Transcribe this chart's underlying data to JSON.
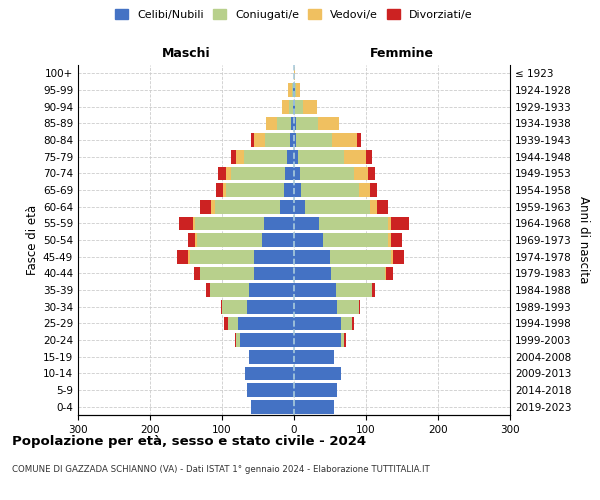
{
  "age_groups": [
    "0-4",
    "5-9",
    "10-14",
    "15-19",
    "20-24",
    "25-29",
    "30-34",
    "35-39",
    "40-44",
    "45-49",
    "50-54",
    "55-59",
    "60-64",
    "65-69",
    "70-74",
    "75-79",
    "80-84",
    "85-89",
    "90-94",
    "95-99",
    "100+"
  ],
  "birth_years": [
    "2019-2023",
    "2014-2018",
    "2009-2013",
    "2004-2008",
    "1999-2003",
    "1994-1998",
    "1989-1993",
    "1984-1988",
    "1979-1983",
    "1974-1978",
    "1969-1973",
    "1964-1968",
    "1959-1963",
    "1954-1958",
    "1949-1953",
    "1944-1948",
    "1939-1943",
    "1934-1938",
    "1929-1933",
    "1924-1928",
    "≤ 1923"
  ],
  "colors": {
    "celibi": "#4472c4",
    "coniugati": "#b8d08c",
    "vedovi": "#f0c060",
    "divorziati": "#cc2222"
  },
  "maschi": {
    "celibi": [
      60,
      65,
      68,
      62,
      75,
      78,
      65,
      62,
      55,
      55,
      45,
      42,
      20,
      14,
      12,
      10,
      5,
      4,
      2,
      1,
      0
    ],
    "coniugati": [
      0,
      0,
      0,
      0,
      5,
      14,
      35,
      55,
      75,
      90,
      90,
      95,
      90,
      80,
      75,
      60,
      35,
      20,
      5,
      2,
      0
    ],
    "vedovi": [
      0,
      0,
      0,
      0,
      0,
      0,
      0,
      0,
      1,
      2,
      2,
      3,
      5,
      5,
      8,
      10,
      15,
      15,
      10,
      5,
      0
    ],
    "divorziati": [
      0,
      0,
      0,
      0,
      2,
      5,
      2,
      5,
      8,
      15,
      10,
      20,
      15,
      10,
      10,
      8,
      5,
      0,
      0,
      0,
      0
    ]
  },
  "femmine": {
    "celibi": [
      55,
      60,
      65,
      55,
      65,
      65,
      60,
      58,
      52,
      50,
      40,
      35,
      15,
      10,
      8,
      5,
      3,
      3,
      2,
      1,
      0
    ],
    "coniugati": [
      0,
      0,
      0,
      0,
      5,
      15,
      30,
      50,
      75,
      85,
      90,
      95,
      90,
      80,
      75,
      65,
      50,
      30,
      10,
      2,
      0
    ],
    "vedovi": [
      0,
      0,
      0,
      0,
      0,
      0,
      0,
      0,
      1,
      3,
      5,
      5,
      10,
      15,
      20,
      30,
      35,
      30,
      20,
      5,
      2
    ],
    "divorziati": [
      0,
      0,
      0,
      0,
      2,
      3,
      2,
      5,
      10,
      15,
      15,
      25,
      15,
      10,
      10,
      8,
      5,
      0,
      0,
      0,
      0
    ]
  },
  "xlim": 300,
  "xticks": [
    -300,
    -200,
    -100,
    0,
    100,
    200,
    300
  ],
  "xticklabels": [
    "300",
    "200",
    "100",
    "0",
    "100",
    "200",
    "300"
  ],
  "title": "Popolazione per età, sesso e stato civile - 2024",
  "subtitle": "COMUNE DI GAZZADA SCHIANNO (VA) - Dati ISTAT 1° gennaio 2024 - Elaborazione TUTTITALIA.IT",
  "ylabel_left": "Fasce di età",
  "ylabel_right": "Anni di nascita",
  "xlabel_maschi": "Maschi",
  "xlabel_femmine": "Femmine"
}
